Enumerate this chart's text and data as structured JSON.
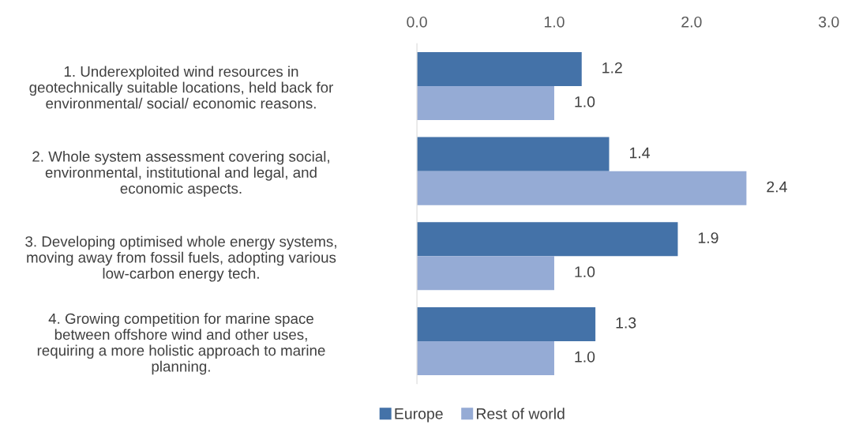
{
  "chart_data": {
    "type": "bar",
    "orientation": "horizontal",
    "categories": [
      "1. Underexploited wind resources in\ngeotechnically suitable locations, held back for\nenvironmental/ social/ economic reasons.",
      "2. Whole system assessment covering social,\nenvironmental, institutional and legal, and\neconomic aspects.",
      "3. Developing optimised whole energy systems,\nmoving away from fossil fuels, adopting various\nlow-carbon energy tech.",
      "4. Growing competition for marine space\nbetween offshore wind and other uses,\nrequiring a more holistic approach to marine\nplanning."
    ],
    "series": [
      {
        "name": "Europe",
        "color": "#4472a8",
        "values": [
          1.2,
          1.4,
          1.9,
          1.3
        ],
        "value_labels": [
          "1.2",
          "1.4",
          "1.9",
          "1.3"
        ]
      },
      {
        "name": "Rest of world",
        "color": "#95abd5",
        "values": [
          1.0,
          2.4,
          1.0,
          1.0
        ],
        "value_labels": [
          "1.0",
          "2.4",
          "1.0",
          "1.0"
        ]
      }
    ],
    "xlim": [
      0,
      3
    ],
    "xticks": [
      {
        "value": 0,
        "label": "0.0"
      },
      {
        "value": 1,
        "label": "1.0"
      },
      {
        "value": 2,
        "label": "2.0"
      },
      {
        "value": 3,
        "label": "3.0"
      }
    ],
    "grid": false,
    "legend": "bottom"
  }
}
